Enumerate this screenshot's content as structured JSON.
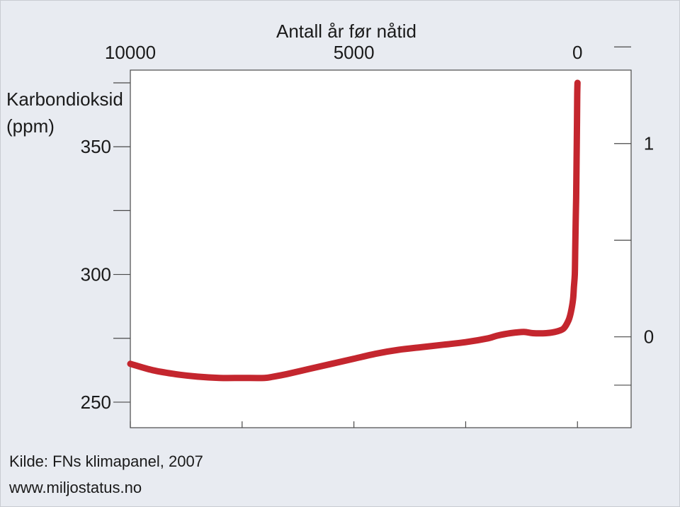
{
  "chart_data": {
    "type": "line",
    "x_axis": {
      "label": "Antall år før nåtid",
      "position": "top",
      "reversed": true,
      "range": [
        10000,
        -1200
      ],
      "ticks": [
        10000,
        7500,
        5000,
        2500,
        0
      ],
      "tick_labels": [
        {
          "value": 10000,
          "label": "10000"
        },
        {
          "value": 5000,
          "label": "5000"
        },
        {
          "value": 0,
          "label": "0"
        }
      ]
    },
    "y_axis_left": {
      "label_lines": [
        "Karbondioksid",
        "(ppm)"
      ],
      "range": [
        240,
        380
      ],
      "ticks": [
        250,
        275,
        300,
        325,
        350,
        375
      ],
      "tick_labels": [
        {
          "value": 250,
          "label": "250"
        },
        {
          "value": 300,
          "label": "300"
        },
        {
          "value": 350,
          "label": "350"
        }
      ]
    },
    "y_axis_right": {
      "range": [
        -0.47,
        1.38
      ],
      "ticks": [
        -0.25,
        0,
        0.5,
        1,
        1.5
      ],
      "tick_labels": [
        {
          "value": 0,
          "label": "0"
        },
        {
          "value": 1,
          "label": "1"
        }
      ]
    },
    "series": [
      {
        "color": "#c4262e",
        "x": [
          10000,
          9500,
          9000,
          8500,
          8000,
          7500,
          7000,
          6800,
          6500,
          6000,
          5500,
          5000,
          4500,
          4000,
          3500,
          3000,
          2500,
          2000,
          1800,
          1500,
          1200,
          1000,
          700,
          500,
          400,
          300,
          200,
          150,
          100,
          80,
          60,
          50,
          40,
          30,
          20,
          10,
          5,
          0
        ],
        "y": [
          265,
          262.5,
          261,
          260,
          259.5,
          259.5,
          259.5,
          260,
          261,
          263,
          265,
          267,
          269,
          270.5,
          271.5,
          272.5,
          273.5,
          275,
          276,
          277,
          277.5,
          277,
          277,
          277.5,
          278,
          279,
          282,
          285,
          290,
          295,
          300,
          310,
          320,
          330,
          345,
          360,
          370,
          375
        ]
      }
    ],
    "line_width": 9,
    "grid": false
  },
  "footer": {
    "source": "Kilde: FNs klimapanel, 2007",
    "website": "www.miljostatus.no"
  }
}
